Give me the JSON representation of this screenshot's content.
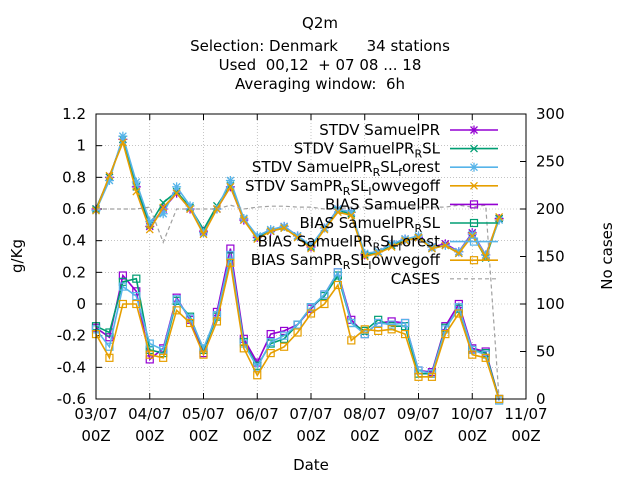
{
  "titles": {
    "line1": "Q2m",
    "line2": "Selection: Denmark      34 stations",
    "line3": "Used  00,12  + 07 08 ... 18",
    "line4": "Averaging window:  6h"
  },
  "chart_data": {
    "type": "line",
    "xlabel": "Date",
    "ylabel": "g/Kg",
    "y2label": "No cases",
    "ylim": [
      -0.6,
      1.2
    ],
    "y2lim": [
      0,
      300
    ],
    "xlim": [
      0,
      8
    ],
    "grid": true,
    "legend_position": "top-right",
    "x_ticks": [
      {
        "date": "03/07",
        "hour": "00Z"
      },
      {
        "date": "04/07",
        "hour": "00Z"
      },
      {
        "date": "05/07",
        "hour": "00Z"
      },
      {
        "date": "06/07",
        "hour": "00Z"
      },
      {
        "date": "07/07",
        "hour": "00Z"
      },
      {
        "date": "08/07",
        "hour": "00Z"
      },
      {
        "date": "09/07",
        "hour": "00Z"
      },
      {
        "date": "10/07",
        "hour": "00Z"
      },
      {
        "date": "11/07",
        "hour": "00Z"
      }
    ],
    "y_ticks": [
      "-0.6",
      "-0.4",
      "-0.2",
      "0",
      "0.2",
      "0.4",
      "0.6",
      "0.8",
      "1",
      "1.2"
    ],
    "y2_ticks": [
      "0",
      "50",
      "100",
      "150",
      "200",
      "250",
      "300"
    ],
    "x": [
      0.0,
      0.25,
      0.5,
      0.75,
      1.0,
      1.25,
      1.5,
      1.75,
      2.0,
      2.25,
      2.5,
      2.75,
      3.0,
      3.25,
      3.5,
      3.75,
      4.0,
      4.25,
      4.5,
      4.75,
      5.0,
      5.25,
      5.5,
      5.75,
      6.0,
      6.25,
      6.5,
      6.75,
      7.0,
      7.25,
      7.5
    ],
    "series": [
      {
        "name": "STDV SamuelPR",
        "color": "#9400d3",
        "marker": "star",
        "dash": false,
        "values": [
          0.6,
          0.8,
          1.04,
          0.74,
          0.49,
          0.6,
          0.7,
          0.6,
          0.46,
          0.6,
          0.74,
          0.53,
          0.42,
          0.46,
          0.49,
          0.43,
          0.36,
          0.48,
          0.6,
          0.58,
          0.31,
          0.33,
          0.38,
          0.41,
          0.42,
          0.36,
          0.38,
          0.33,
          0.45,
          0.31,
          0.54
        ]
      },
      {
        "name": "STDV SamuelPR_RSL",
        "color": "#009e73",
        "marker": "x",
        "dash": false,
        "values": [
          0.6,
          0.8,
          1.04,
          0.74,
          0.5,
          0.64,
          0.71,
          0.61,
          0.47,
          0.62,
          0.75,
          0.54,
          0.42,
          0.46,
          0.48,
          0.43,
          0.36,
          0.48,
          0.59,
          0.57,
          0.31,
          0.33,
          0.37,
          0.41,
          0.42,
          0.35,
          0.37,
          0.32,
          0.44,
          0.29,
          0.54
        ]
      },
      {
        "name": "STDV SamuelPR_RSL_forest",
        "color": "#56b4e9",
        "marker": "star",
        "dash": false,
        "values": [
          0.59,
          0.78,
          1.06,
          0.77,
          0.52,
          0.57,
          0.74,
          0.62,
          0.45,
          0.6,
          0.78,
          0.54,
          0.43,
          0.47,
          0.49,
          0.43,
          0.37,
          0.48,
          0.6,
          0.58,
          0.32,
          0.33,
          0.38,
          0.41,
          0.43,
          0.36,
          0.37,
          0.33,
          0.44,
          0.31,
          0.53
        ]
      },
      {
        "name": "STDV SamPR_RSL_lowvegoff",
        "color": "#e69f00",
        "marker": "x",
        "dash": false,
        "values": [
          0.59,
          0.81,
          1.02,
          0.71,
          0.47,
          0.61,
          0.7,
          0.6,
          0.44,
          0.6,
          0.74,
          0.53,
          0.41,
          0.46,
          0.48,
          0.42,
          0.35,
          0.47,
          0.58,
          0.56,
          0.3,
          0.32,
          0.36,
          0.4,
          0.42,
          0.35,
          0.37,
          0.32,
          0.43,
          0.3,
          0.55
        ]
      },
      {
        "name": "BIAS SamuelPR",
        "color": "#9400d3",
        "marker": "square",
        "dash": false,
        "values": [
          -0.15,
          -0.21,
          0.18,
          0.08,
          -0.35,
          -0.28,
          0.04,
          -0.1,
          -0.31,
          -0.05,
          0.35,
          -0.22,
          -0.37,
          -0.19,
          -0.17,
          -0.13,
          -0.03,
          0.06,
          0.2,
          -0.1,
          -0.19,
          -0.12,
          -0.11,
          -0.12,
          -0.42,
          -0.43,
          -0.14,
          0.0,
          -0.28,
          -0.3,
          -0.6
        ]
      },
      {
        "name": "BIAS SamuelPR_RSL",
        "color": "#009e73",
        "marker": "square",
        "dash": false,
        "values": [
          -0.14,
          -0.18,
          0.14,
          0.16,
          -0.29,
          -0.31,
          0.02,
          -0.08,
          -0.29,
          -0.08,
          0.3,
          -0.24,
          -0.39,
          -0.25,
          -0.22,
          -0.13,
          -0.02,
          0.05,
          0.18,
          -0.12,
          -0.17,
          -0.1,
          -0.14,
          -0.14,
          -0.44,
          -0.44,
          -0.15,
          -0.03,
          -0.29,
          -0.31,
          -0.6
        ]
      },
      {
        "name": "BIAS SamuelPR_RSL_forest",
        "color": "#56b4e9",
        "marker": "square",
        "dash": false,
        "values": [
          -0.16,
          -0.27,
          0.11,
          0.05,
          -0.25,
          -0.29,
          0.03,
          -0.09,
          -0.28,
          -0.07,
          0.31,
          -0.25,
          -0.4,
          -0.24,
          -0.2,
          -0.13,
          -0.02,
          0.06,
          0.2,
          -0.12,
          -0.19,
          -0.12,
          -0.13,
          -0.12,
          -0.42,
          -0.44,
          -0.16,
          -0.02,
          -0.29,
          -0.32,
          -0.61
        ]
      },
      {
        "name": "BIAS SamPR_RSL_lowvegoff",
        "color": "#e69f00",
        "marker": "square",
        "dash": false,
        "values": [
          -0.19,
          -0.34,
          0.0,
          0.0,
          -0.32,
          -0.34,
          -0.04,
          -0.12,
          -0.32,
          -0.11,
          0.26,
          -0.28,
          -0.45,
          -0.31,
          -0.27,
          -0.18,
          -0.06,
          0.0,
          0.12,
          -0.23,
          -0.16,
          -0.17,
          -0.16,
          -0.19,
          -0.46,
          -0.46,
          -0.19,
          -0.06,
          -0.32,
          -0.34,
          -0.6
        ]
      },
      {
        "name": "CASES",
        "color": "#a0a0a0",
        "marker": "none",
        "dash": true,
        "axis": "y2",
        "values": [
          200,
          200,
          200,
          200,
          202,
          165,
          200,
          200,
          200,
          200,
          204,
          200,
          202,
          203,
          203,
          202,
          202,
          200,
          200,
          202,
          202,
          202,
          202,
          202,
          202,
          202,
          202,
          204,
          202,
          204,
          0
        ]
      }
    ],
    "legend": [
      {
        "label": "STDV SamuelPR",
        "sub": "",
        "rest": ""
      },
      {
        "label": "STDV SamuelPR",
        "sub": "R",
        "rest": "SL"
      },
      {
        "label": "STDV SamuelPR",
        "sub": "R",
        "rest": "SL",
        "sub2": "f",
        "rest2": "orest"
      },
      {
        "label": "STDV SamPR",
        "sub": "R",
        "rest": "SL",
        "sub2": "l",
        "rest2": "owvegoff"
      },
      {
        "label": "BIAS SamuelPR",
        "sub": "",
        "rest": ""
      },
      {
        "label": "BIAS SamuelPR",
        "sub": "R",
        "rest": "SL"
      },
      {
        "label": "BIAS SamuelPR",
        "sub": "R",
        "rest": "SL",
        "sub2": "f",
        "rest2": "orest"
      },
      {
        "label": "BIAS SamPR",
        "sub": "R",
        "rest": "SL",
        "sub2": "l",
        "rest2": "owvegoff"
      },
      {
        "label": "CASES",
        "sub": "",
        "rest": ""
      }
    ]
  }
}
